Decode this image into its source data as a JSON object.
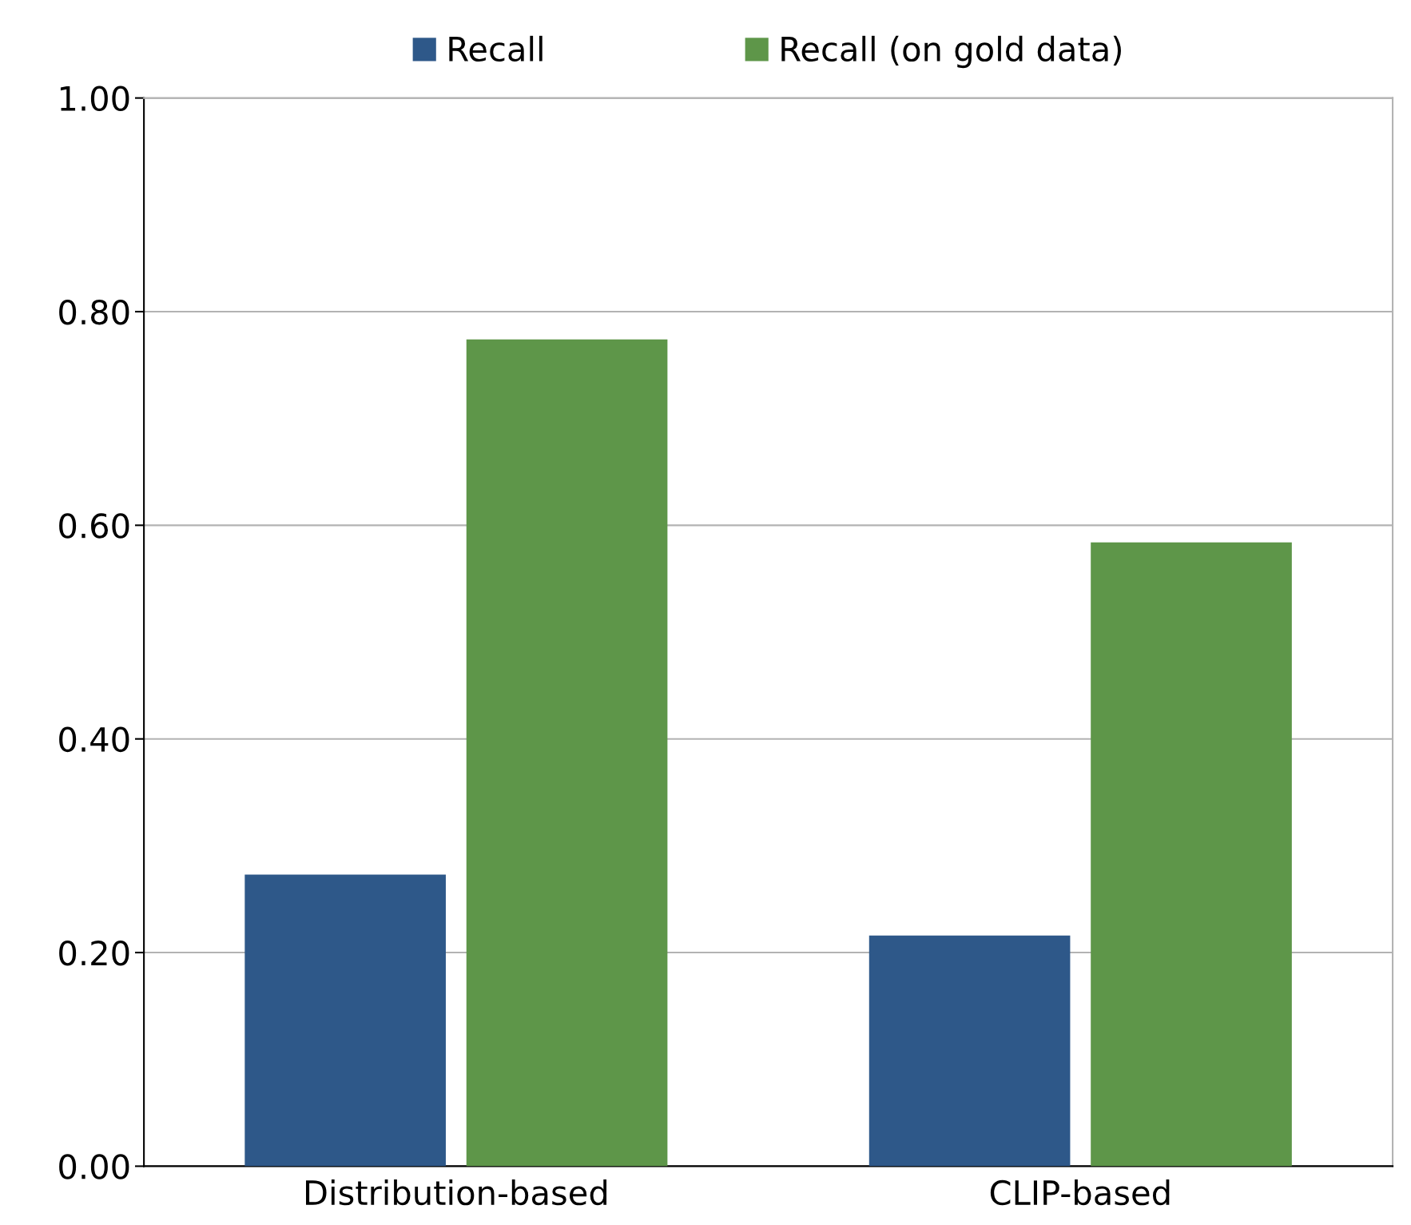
{
  "chart_data": {
    "type": "bar",
    "categories": [
      "Distribution-based",
      "CLIP-based"
    ],
    "series": [
      {
        "name": "Recall",
        "color": "#2e5889",
        "values": [
          0.273,
          0.216
        ]
      },
      {
        "name": "Recall (on gold data)",
        "color": "#5e9649",
        "values": [
          0.774,
          0.584
        ]
      }
    ],
    "ylim": [
      0,
      1
    ],
    "yticks": [
      {
        "value": 0,
        "label": "0.00"
      },
      {
        "value": 0.2,
        "label": "0.20"
      },
      {
        "value": 0.4,
        "label": "0.40"
      },
      {
        "value": 0.6,
        "label": "0.60"
      },
      {
        "value": 0.8,
        "label": "0.80"
      },
      {
        "value": 1,
        "label": "1.00"
      }
    ],
    "grid": "y",
    "legend": "top"
  }
}
